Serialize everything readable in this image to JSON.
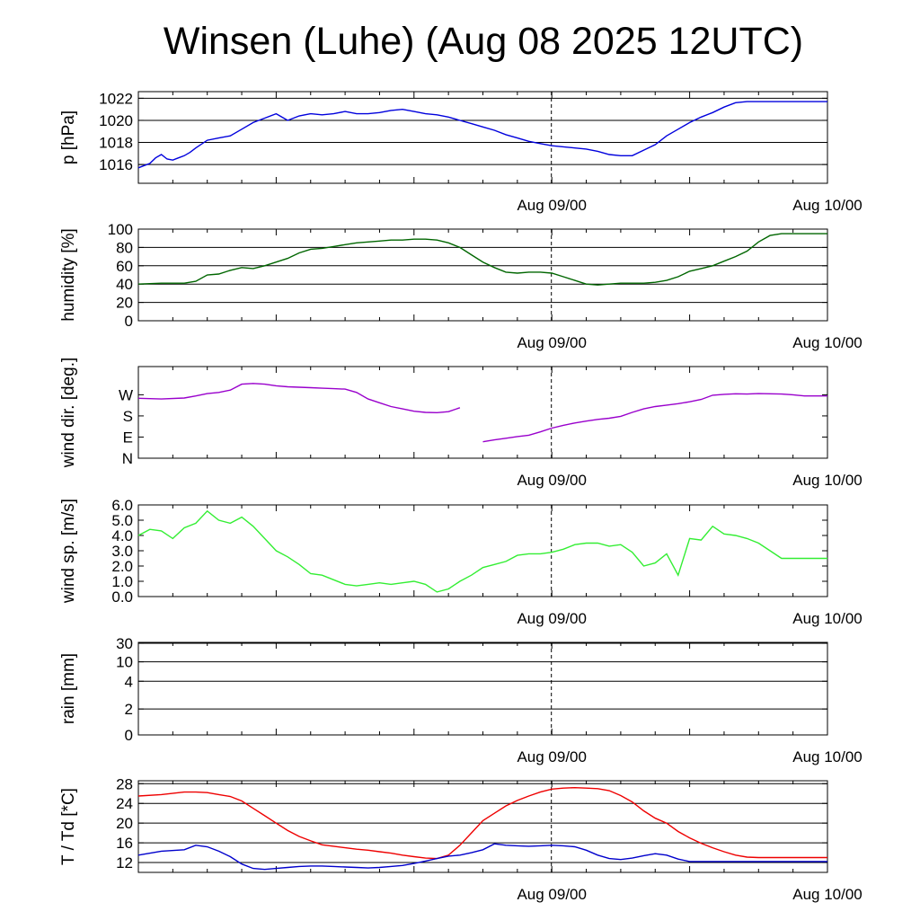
{
  "title": "Winsen (Luhe) (Aug 08 2025 12UTC)",
  "x_ticks": [
    "Aug 09/00",
    "Aug 10/00"
  ],
  "chart_data": [
    {
      "type": "line",
      "ylabel": "p [hPa]",
      "ylim": [
        1014.3,
        1022.6
      ],
      "yticks": [
        1016,
        1018,
        1020,
        1022
      ],
      "yticklabels": [
        "1016",
        "1018",
        "1020",
        "1022"
      ],
      "grid": true,
      "series": [
        {
          "color": "#0000dd",
          "x": [
            0,
            0.5,
            1,
            1.5,
            2,
            2.5,
            3,
            3.5,
            4,
            4.5,
            5,
            6,
            7,
            8,
            9,
            10,
            11,
            12,
            13,
            14,
            15,
            16,
            17,
            18,
            19,
            20,
            21,
            22,
            23,
            24,
            25,
            26,
            27,
            28,
            29,
            30,
            31,
            32,
            33,
            34,
            35,
            36,
            37,
            38,
            39,
            40,
            41,
            42,
            43,
            44,
            45,
            46,
            47,
            48,
            49,
            50,
            51,
            52,
            53,
            54,
            55,
            56,
            57,
            58,
            59,
            60,
            61,
            62,
            63,
            64,
            65,
            66,
            67,
            68,
            69,
            70,
            71,
            72
          ],
          "y": [
            1015.7,
            1015.9,
            1016.1,
            1016.6,
            1016.9,
            1016.5,
            1016.4,
            1016.6,
            1016.8,
            1017.1,
            1017.5,
            1018.2,
            1018.4,
            1018.6,
            1019.2,
            1019.8,
            1020.2,
            1020.6,
            1020.0,
            1020.4,
            1020.6,
            1020.5,
            1020.6,
            1020.8,
            1020.6,
            1020.6,
            1020.7,
            1020.9,
            1021.0,
            1020.8,
            1020.6,
            1020.5,
            1020.3,
            1020.0,
            1019.7,
            1019.4,
            1019.1,
            1018.7,
            1018.4,
            1018.1,
            1017.9,
            1017.7,
            1017.6,
            1017.5,
            1017.4,
            1017.2,
            1016.9,
            1016.8,
            1016.8,
            1017.3,
            1017.8,
            1018.6,
            1019.2,
            1019.8,
            1020.3,
            1020.7,
            1021.2,
            1021.6,
            1021.7,
            1021.7,
            1021.7,
            1021.7,
            1021.7,
            1021.7,
            1021.7,
            1021.7,
            1021.7,
            1021.7,
            1021.7,
            1021.7,
            1021.7,
            1021.7,
            1021.7,
            1021.7,
            1021.7,
            1021.7,
            1021.7,
            1021.7
          ]
        }
      ]
    },
    {
      "type": "line",
      "ylabel": "humidity [%]",
      "ylim": [
        0,
        100
      ],
      "yticks": [
        0,
        20,
        40,
        60,
        80,
        100
      ],
      "yticklabels": [
        "0",
        "20",
        "40",
        "60",
        "80",
        "100"
      ],
      "grid": true,
      "series": [
        {
          "color": "#006600",
          "x": [
            0,
            2,
            4,
            5,
            6,
            7,
            8,
            9,
            10,
            11,
            12,
            13,
            14,
            15,
            16,
            17,
            18,
            19,
            20,
            21,
            22,
            23,
            24,
            25,
            26,
            27,
            28,
            29,
            30,
            31,
            32,
            33,
            34,
            35,
            36,
            37,
            38,
            39,
            40,
            41,
            42,
            43,
            44,
            45,
            46,
            47,
            48,
            49,
            50,
            51,
            52,
            53,
            54,
            55,
            56,
            57,
            58,
            59,
            60,
            61,
            62,
            63,
            64,
            65,
            66,
            67,
            68,
            69,
            70,
            71,
            72
          ],
          "y": [
            40,
            41,
            41,
            43,
            50,
            51,
            55,
            58,
            57,
            60,
            64,
            68,
            74,
            78,
            79,
            81,
            83,
            85,
            86,
            87,
            88,
            88,
            89,
            89,
            88,
            85,
            80,
            72,
            64,
            58,
            53,
            52,
            53,
            53,
            52,
            48,
            44,
            40,
            39,
            40,
            41,
            41,
            41,
            42,
            44,
            48,
            54,
            57,
            60,
            65,
            70,
            76,
            86,
            93,
            95,
            95,
            95,
            95,
            95,
            95,
            95,
            95,
            95,
            95,
            95,
            95,
            95,
            95,
            95,
            95,
            95
          ]
        }
      ]
    },
    {
      "type": "line",
      "ylabel": "wind dir. [deg.]",
      "ylim": [
        0,
        390
      ],
      "yticks": [
        0,
        90,
        180,
        270
      ],
      "yticklabels": [
        "N",
        "E",
        "S",
        "W"
      ],
      "grid": false,
      "series": [
        {
          "color": "#9900cc",
          "x": [
            0,
            2,
            4,
            5,
            6,
            7,
            8,
            9,
            10,
            11,
            12,
            13,
            14,
            15,
            16,
            17,
            18,
            19,
            20,
            21,
            22,
            23,
            24,
            25,
            26,
            27,
            28,
            29,
            30,
            31,
            32,
            33,
            34,
            35,
            36,
            37,
            38,
            39,
            40,
            41,
            42,
            43,
            44,
            45,
            46,
            47,
            48,
            49,
            50,
            51,
            52,
            53,
            54,
            55,
            56,
            57,
            58,
            59,
            60,
            61,
            62,
            63,
            64,
            65,
            66,
            67,
            68,
            69,
            70,
            71,
            72
          ],
          "y": [
            255,
            252,
            256,
            265,
            275,
            280,
            290,
            315,
            318,
            315,
            308,
            304,
            302,
            300,
            298,
            296,
            294,
            280,
            252,
            236,
            220,
            210,
            200,
            195,
            194,
            198,
            215,
            null,
            70,
            78,
            85,
            92,
            98,
            112,
            128,
            140,
            150,
            158,
            165,
            170,
            178,
            195,
            210,
            220,
            226,
            232,
            240,
            250,
            268,
            272,
            274,
            273,
            275,
            274,
            273,
            270,
            265,
            265,
            265,
            265,
            265,
            265,
            265,
            265,
            265,
            265,
            265,
            265,
            265,
            265,
            265
          ]
        }
      ]
    },
    {
      "type": "line",
      "ylabel": "wind sp. [m/s]",
      "ylim": [
        0,
        6
      ],
      "yticks": [
        0,
        1,
        2,
        3,
        4,
        5,
        6
      ],
      "yticklabels": [
        "0.0",
        "1.0",
        "2.0",
        "3.0",
        "4.0",
        "5.0",
        "6.0"
      ],
      "grid": false,
      "series": [
        {
          "color": "#33ee33",
          "x": [
            0,
            1,
            2,
            3,
            4,
            5,
            6,
            7,
            8,
            9,
            10,
            11,
            12,
            13,
            14,
            15,
            16,
            17,
            18,
            19,
            20,
            21,
            22,
            23,
            24,
            25,
            26,
            27,
            28,
            29,
            30,
            31,
            32,
            33,
            34,
            35,
            36,
            37,
            38,
            39,
            40,
            41,
            42,
            43,
            44,
            45,
            46,
            47,
            48,
            49,
            50,
            51,
            52,
            53,
            54,
            55,
            56,
            57,
            58,
            59,
            60,
            61,
            62,
            63,
            64,
            65,
            66,
            67,
            68,
            69,
            70,
            71,
            72
          ],
          "y": [
            4.0,
            4.4,
            4.3,
            3.8,
            4.5,
            4.8,
            5.6,
            5.0,
            4.8,
            5.2,
            4.6,
            3.8,
            3.0,
            2.6,
            2.1,
            1.5,
            1.4,
            1.1,
            0.8,
            0.7,
            0.8,
            0.9,
            0.8,
            0.9,
            1.0,
            0.8,
            0.3,
            0.5,
            1.0,
            1.4,
            1.9,
            2.1,
            2.3,
            2.7,
            2.8,
            2.8,
            2.9,
            3.1,
            3.4,
            3.5,
            3.5,
            3.3,
            3.4,
            2.9,
            2.0,
            2.2,
            2.8,
            1.4,
            3.8,
            3.7,
            4.6,
            4.1,
            4.0,
            3.8,
            3.5,
            3.0,
            2.5,
            2.5,
            2.5,
            2.5,
            2.5,
            2.5,
            2.5,
            2.5,
            2.5,
            2.5,
            2.5,
            2.5,
            2.5,
            2.5,
            2.5,
            2.5,
            2.5
          ]
        }
      ]
    },
    {
      "type": "line",
      "ylabel": "rain [mm]",
      "ylim": [
        0,
        35
      ],
      "yticks": [
        0,
        2,
        4,
        10,
        30
      ],
      "yticklabels": [
        "0",
        "2",
        "4",
        "10",
        "30"
      ],
      "grid": true,
      "series": []
    },
    {
      "type": "line",
      "ylabel": "T / Td [*C]",
      "ylim": [
        10,
        28.6
      ],
      "yticks": [
        12,
        16,
        20,
        24,
        28
      ],
      "yticklabels": [
        "12",
        "16",
        "20",
        "24",
        "28"
      ],
      "grid": true,
      "series": [
        {
          "color": "#ee0000",
          "x": [
            0,
            2,
            4,
            5,
            6,
            7,
            8,
            9,
            10,
            11,
            12,
            13,
            14,
            15,
            16,
            17,
            18,
            19,
            20,
            21,
            22,
            23,
            24,
            25,
            26,
            27,
            28,
            29,
            30,
            31,
            32,
            33,
            34,
            35,
            36,
            37,
            38,
            39,
            40,
            41,
            42,
            43,
            44,
            45,
            46,
            47,
            48,
            49,
            50,
            51,
            52,
            53,
            54,
            55,
            56,
            57,
            58,
            59,
            60,
            61,
            62,
            63,
            64,
            65,
            66,
            67,
            68,
            69,
            70,
            71,
            72
          ],
          "y": [
            25.5,
            25.8,
            26.3,
            26.3,
            26.2,
            25.8,
            25.4,
            24.5,
            23.0,
            21.5,
            20.0,
            18.5,
            17.3,
            16.4,
            15.6,
            15.3,
            15.0,
            14.7,
            14.5,
            14.2,
            13.9,
            13.5,
            13.2,
            12.9,
            12.8,
            13.5,
            15.5,
            18.0,
            20.5,
            22.0,
            23.5,
            24.6,
            25.5,
            26.3,
            26.9,
            27.1,
            27.2,
            27.1,
            27.0,
            26.6,
            25.6,
            24.3,
            22.5,
            21.0,
            20.0,
            18.3,
            17.0,
            15.9,
            15.0,
            14.2,
            13.5,
            13.1,
            13.0,
            13.0,
            13.0,
            13.0,
            13.0,
            13.0,
            13.0,
            13.0,
            13.0,
            13.0,
            13.0,
            13.0,
            13.0,
            13.0,
            13.0,
            13.0,
            13.0,
            13.0,
            13.0
          ]
        },
        {
          "color": "#0000cc",
          "x": [
            0,
            2,
            4,
            5,
            6,
            7,
            8,
            9,
            10,
            11,
            12,
            13,
            14,
            15,
            16,
            17,
            18,
            19,
            20,
            21,
            22,
            23,
            24,
            25,
            26,
            27,
            28,
            29,
            30,
            31,
            32,
            33,
            34,
            35,
            36,
            37,
            38,
            39,
            40,
            41,
            42,
            43,
            44,
            45,
            46,
            47,
            48,
            49,
            50,
            51,
            52,
            53,
            54,
            55,
            56,
            57,
            58,
            59,
            60,
            61,
            62,
            63,
            64,
            65,
            66,
            67,
            68,
            69,
            70,
            71,
            72
          ],
          "y": [
            13.5,
            14.3,
            14.6,
            15.5,
            15.2,
            14.3,
            13.2,
            11.7,
            10.8,
            10.6,
            10.8,
            11.0,
            11.2,
            11.3,
            11.3,
            11.2,
            11.1,
            11.0,
            10.9,
            11.0,
            11.2,
            11.4,
            11.8,
            12.3,
            12.8,
            13.3,
            13.5,
            14.0,
            14.6,
            15.8,
            15.5,
            15.4,
            15.3,
            15.4,
            15.5,
            15.4,
            15.2,
            14.5,
            13.5,
            12.8,
            12.6,
            12.9,
            13.4,
            13.8,
            13.5,
            12.7,
            12.2,
            12.2,
            12.2,
            12.2,
            12.2,
            12.2,
            12.2,
            12.2,
            12.2,
            12.2,
            12.2,
            12.2,
            12.2,
            12.2,
            12.2,
            12.2,
            12.2,
            12.2,
            12.2,
            12.2,
            12.2,
            12.2,
            12.2,
            12.2,
            12.2
          ]
        }
      ]
    }
  ]
}
